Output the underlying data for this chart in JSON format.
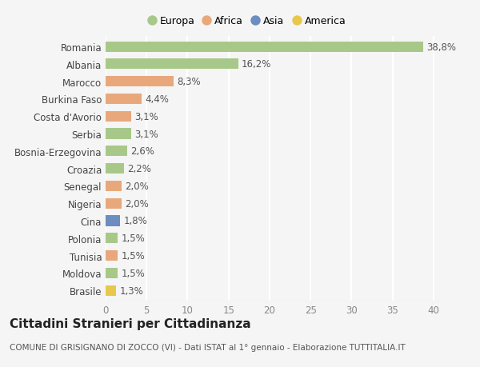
{
  "categories": [
    "Romania",
    "Albania",
    "Marocco",
    "Burkina Faso",
    "Costa d'Avorio",
    "Serbia",
    "Bosnia-Erzegovina",
    "Croazia",
    "Senegal",
    "Nigeria",
    "Cina",
    "Polonia",
    "Tunisia",
    "Moldova",
    "Brasile"
  ],
  "values": [
    38.8,
    16.2,
    8.3,
    4.4,
    3.1,
    3.1,
    2.6,
    2.2,
    2.0,
    2.0,
    1.8,
    1.5,
    1.5,
    1.5,
    1.3
  ],
  "labels": [
    "38,8%",
    "16,2%",
    "8,3%",
    "4,4%",
    "3,1%",
    "3,1%",
    "2,6%",
    "2,2%",
    "2,0%",
    "2,0%",
    "1,8%",
    "1,5%",
    "1,5%",
    "1,5%",
    "1,3%"
  ],
  "colors": [
    "#a8c88a",
    "#a8c88a",
    "#e8a87c",
    "#e8a87c",
    "#e8a87c",
    "#a8c88a",
    "#a8c88a",
    "#a8c88a",
    "#e8a87c",
    "#e8a87c",
    "#6b8dbf",
    "#a8c88a",
    "#e8a87c",
    "#a8c88a",
    "#e8c84a"
  ],
  "continent_colors": {
    "Europa": "#a8c88a",
    "Africa": "#e8a87c",
    "Asia": "#6b8dbf",
    "America": "#e8c84a"
  },
  "title": "Cittadini Stranieri per Cittadinanza",
  "subtitle": "COMUNE DI GRISIGNANO DI ZOCCO (VI) - Dati ISTAT al 1° gennaio - Elaborazione TUTTITALIA.IT",
  "xlim": [
    0,
    41
  ],
  "xticks": [
    0,
    5,
    10,
    15,
    20,
    25,
    30,
    35,
    40
  ],
  "background_color": "#f5f5f5",
  "grid_color": "#ffffff",
  "bar_height": 0.6,
  "label_fontsize": 8.5,
  "tick_fontsize": 8.5,
  "title_fontsize": 11,
  "subtitle_fontsize": 7.5
}
